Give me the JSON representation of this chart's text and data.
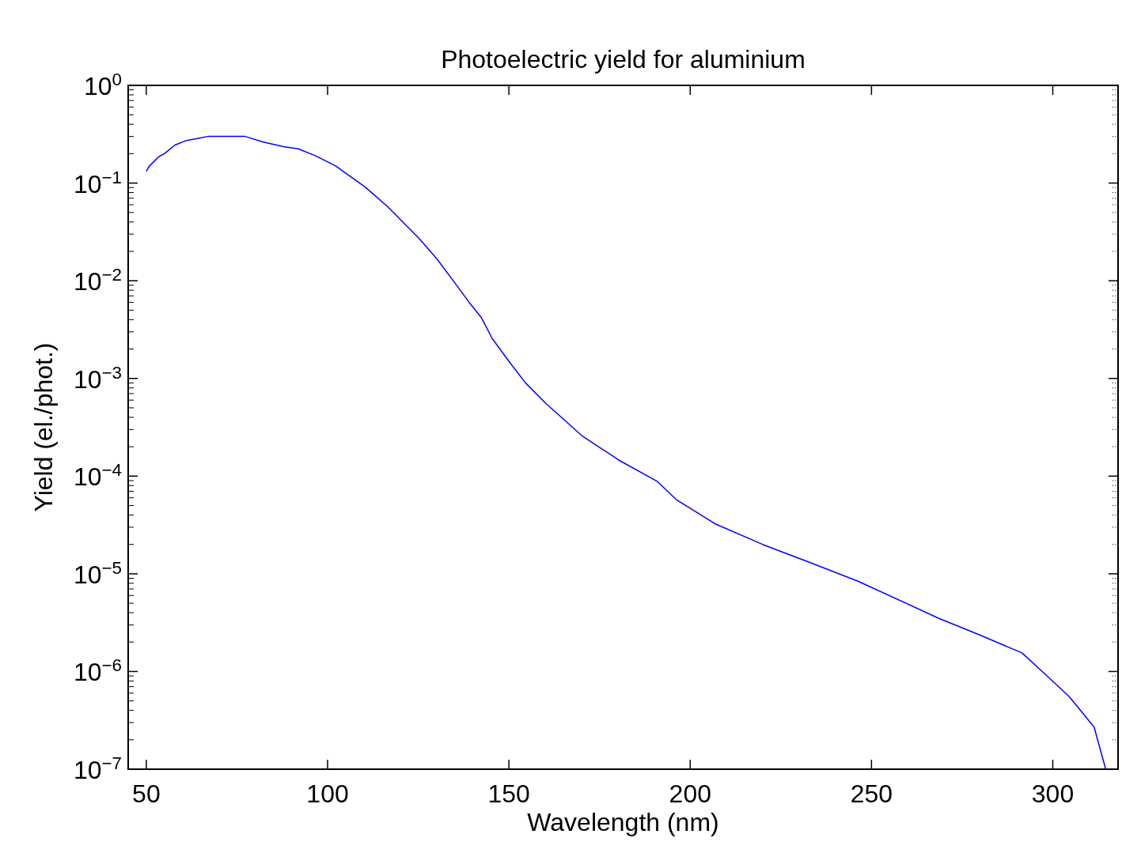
{
  "chart_data": {
    "type": "line",
    "title": "Photoelectric yield for aluminium",
    "xlabel": "Wavelength (nm)",
    "ylabel": "Yield (el./phot.)",
    "log": "y",
    "line_style": "solid",
    "xlim": [
      45,
      318
    ],
    "xticks": [
      50,
      100,
      150,
      200,
      250,
      300
    ],
    "ylim": [
      1e-07,
      1
    ],
    "yticks": [
      {
        "value": 1e-07,
        "label": "10$^{−7}$"
      },
      {
        "value": 1e-06,
        "label": "10$^{−6}$"
      },
      {
        "value": 1e-05,
        "label": "10$^{−5}$"
      },
      {
        "value": 0.0001,
        "label": "10$^{−4}$"
      },
      {
        "value": 0.001,
        "label": "10$^{−3}$"
      },
      {
        "value": 0.01,
        "label": "10$^{−2}$"
      },
      {
        "value": 0.1,
        "label": "10$^{−1}$"
      },
      {
        "value": 1,
        "label": "10$^{0}$"
      }
    ],
    "series": [
      {
        "color": "#0000ff",
        "x": [
          50,
          50.7,
          53.5,
          55,
          57.9,
          61.1,
          67,
          77.3,
          82.1,
          87.8,
          91.9,
          96.7,
          102.2,
          106.1,
          110.3,
          116.4,
          120.7,
          125.1,
          130.1,
          134.5,
          138.9,
          142.4,
          145.4,
          150.4,
          154.6,
          160.3,
          170.1,
          180.3,
          190.8,
          196.3,
          206.8,
          220.1,
          233.4,
          246.3,
          268.6,
          279.5,
          291.5,
          298,
          304.6,
          311.4,
          314.6
        ],
        "values": [
          0.132,
          0.147,
          0.187,
          0.2,
          0.245,
          0.273,
          0.3,
          0.3,
          0.264,
          0.236,
          0.224,
          0.19,
          0.15,
          0.118,
          0.0915,
          0.058,
          0.04,
          0.0274,
          0.0168,
          0.0102,
          0.0061,
          0.0042,
          0.00256,
          0.00143,
          0.0009,
          0.00055,
          0.00026,
          0.000146,
          8.9e-05,
          5.7e-05,
          3.26e-05,
          1.99e-05,
          1.29e-05,
          8.4e-06,
          3.5e-06,
          2.4e-06,
          1.55e-06,
          9.3e-07,
          5.5e-07,
          2.7e-07,
          1e-07
        ]
      }
    ]
  }
}
